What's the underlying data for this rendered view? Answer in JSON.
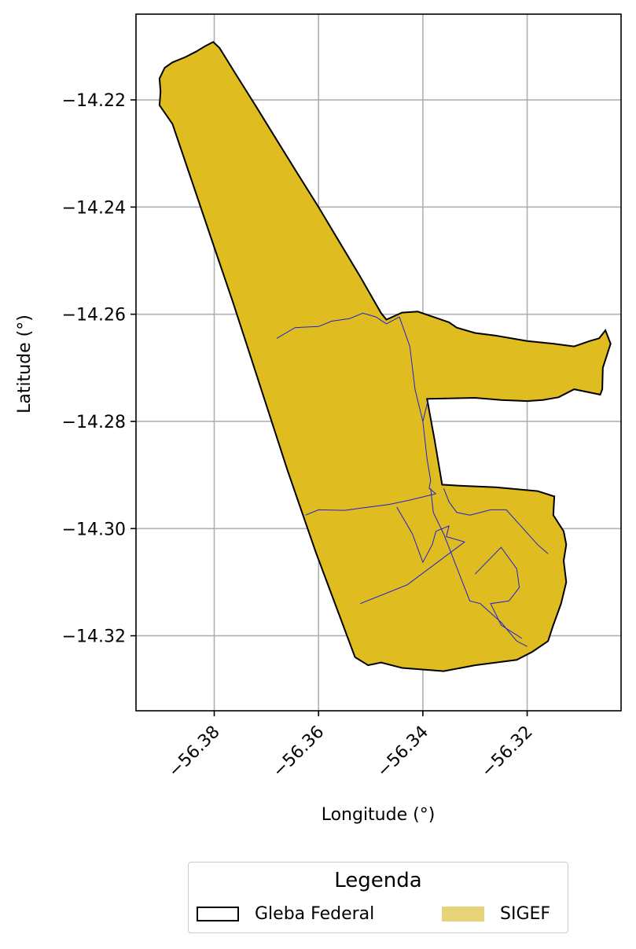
{
  "chart_data": {
    "type": "map",
    "xlabel": "Longitude (°)",
    "ylabel": "Latitude (°)",
    "xlim": [
      -56.395,
      -56.302
    ],
    "ylim": [
      -14.334,
      -14.204
    ],
    "xticks": [
      -56.38,
      -56.36,
      -56.34,
      -56.32
    ],
    "xtick_labels": [
      "−56.38",
      "−56.36",
      "−56.34",
      "−56.32"
    ],
    "yticks": [
      -14.22,
      -14.24,
      -14.26,
      -14.28,
      -14.3,
      -14.32
    ],
    "ytick_labels": [
      "−14.22",
      "−14.24",
      "−14.26",
      "−14.28",
      "−14.30",
      "−14.32"
    ],
    "grid": true,
    "legend": {
      "title": "Legenda",
      "placement": "bottom-center",
      "entries": [
        {
          "label": "Gleba Federal",
          "style": "outline",
          "color": "#000000"
        },
        {
          "label": "SIGEF",
          "style": "fill",
          "color": "#e8d27a"
        }
      ]
    },
    "layers": [
      {
        "name": "Gleba Federal",
        "fill": "#dfbc1f",
        "stroke": "#000000",
        "polygon": [
          [
            -56.3802,
            -14.2092
          ],
          [
            -56.379,
            -14.2103
          ],
          [
            -56.376,
            -14.215
          ],
          [
            -56.372,
            -14.2212
          ],
          [
            -56.368,
            -14.2275
          ],
          [
            -56.364,
            -14.2338
          ],
          [
            -56.36,
            -14.24
          ],
          [
            -56.356,
            -14.2465
          ],
          [
            -56.352,
            -14.253
          ],
          [
            -56.348,
            -14.2598
          ],
          [
            -56.347,
            -14.261
          ],
          [
            -56.344,
            -14.2597
          ],
          [
            -56.341,
            -14.2595
          ],
          [
            -56.338,
            -14.2605
          ],
          [
            -56.335,
            -14.2615
          ],
          [
            -56.3335,
            -14.2625
          ],
          [
            -56.33,
            -14.2635
          ],
          [
            -56.326,
            -14.264
          ],
          [
            -56.32,
            -14.265
          ],
          [
            -56.315,
            -14.2655
          ],
          [
            -56.311,
            -14.266
          ],
          [
            -56.308,
            -14.265
          ],
          [
            -56.3062,
            -14.2645
          ],
          [
            -56.305,
            -14.263
          ],
          [
            -56.304,
            -14.2655
          ],
          [
            -56.3045,
            -14.267
          ],
          [
            -56.3055,
            -14.27
          ],
          [
            -56.3056,
            -14.274
          ],
          [
            -56.306,
            -14.275
          ],
          [
            -56.3085,
            -14.2745
          ],
          [
            -56.311,
            -14.274
          ],
          [
            -56.314,
            -14.2755
          ],
          [
            -56.317,
            -14.276
          ],
          [
            -56.32,
            -14.2762
          ],
          [
            -56.325,
            -14.276
          ],
          [
            -56.33,
            -14.2756
          ],
          [
            -56.3392,
            -14.2758
          ],
          [
            -56.3378,
            -14.2832
          ],
          [
            -56.3363,
            -14.2918
          ],
          [
            -56.333,
            -14.292
          ],
          [
            -56.326,
            -14.2923
          ],
          [
            -56.318,
            -14.293
          ],
          [
            -56.3148,
            -14.294
          ],
          [
            -56.315,
            -14.2975
          ],
          [
            -56.313,
            -14.3005
          ],
          [
            -56.3125,
            -14.303
          ],
          [
            -56.313,
            -14.306
          ],
          [
            -56.3125,
            -14.31
          ],
          [
            -56.3135,
            -14.314
          ],
          [
            -56.315,
            -14.318
          ],
          [
            -56.316,
            -14.321
          ],
          [
            -56.319,
            -14.323
          ],
          [
            -56.322,
            -14.3245
          ],
          [
            -56.33,
            -14.3255
          ],
          [
            -56.336,
            -14.3266
          ],
          [
            -56.344,
            -14.326
          ],
          [
            -56.348,
            -14.325
          ],
          [
            -56.3505,
            -14.3255
          ],
          [
            -56.353,
            -14.324
          ],
          [
            -56.3605,
            -14.3045
          ],
          [
            -56.366,
            -14.289
          ],
          [
            -56.3695,
            -14.2785
          ],
          [
            -56.373,
            -14.268
          ],
          [
            -56.3765,
            -14.2575
          ],
          [
            -56.38,
            -14.2475
          ],
          [
            -56.384,
            -14.236
          ],
          [
            -56.388,
            -14.2245
          ],
          [
            -56.3905,
            -14.221
          ],
          [
            -56.3903,
            -14.2185
          ],
          [
            -56.3905,
            -14.216
          ],
          [
            -56.3895,
            -14.214
          ],
          [
            -56.388,
            -14.213
          ],
          [
            -56.3855,
            -14.212
          ],
          [
            -56.3835,
            -14.211
          ],
          [
            -56.3818,
            -14.21
          ]
        ]
      },
      {
        "name": "SIGEF",
        "stroke": "#1f1fd6",
        "lines": [
          [
            [
              -56.368,
              -14.2645
            ],
            [
              -56.3645,
              -14.2625
            ],
            [
              -56.36,
              -14.2623
            ],
            [
              -56.3575,
              -14.2613
            ],
            [
              -56.354,
              -14.2608
            ],
            [
              -56.3515,
              -14.2598
            ],
            [
              -56.349,
              -14.2605
            ],
            [
              -56.347,
              -14.2618
            ],
            [
              -56.3445,
              -14.2605
            ]
          ],
          [
            [
              -56.3445,
              -14.2605
            ],
            [
              -56.3425,
              -14.266
            ],
            [
              -56.3415,
              -14.274
            ],
            [
              -56.34,
              -14.28
            ],
            [
              -56.3392,
              -14.287
            ],
            [
              -56.3385,
              -14.291
            ],
            [
              -56.3388,
              -14.2925
            ],
            [
              -56.3375,
              -14.2935
            ]
          ],
          [
            [
              -56.3375,
              -14.2935
            ],
            [
              -56.343,
              -14.2948
            ],
            [
              -56.3465,
              -14.2955
            ],
            [
              -56.352,
              -14.2962
            ],
            [
              -56.355,
              -14.2966
            ],
            [
              -56.36,
              -14.2965
            ],
            [
              -56.3625,
              -14.2975
            ]
          ],
          [
            [
              -56.3385,
              -14.2925
            ],
            [
              -56.338,
              -14.297
            ],
            [
              -56.336,
              -14.301
            ],
            [
              -56.333,
              -14.3085
            ],
            [
              -56.331,
              -14.3135
            ],
            [
              -56.329,
              -14.314
            ],
            [
              -56.325,
              -14.3175
            ],
            [
              -56.322,
              -14.321
            ],
            [
              -56.32,
              -14.322
            ]
          ],
          [
            [
              -56.345,
              -14.296
            ],
            [
              -56.342,
              -14.301
            ],
            [
              -56.34,
              -14.3063
            ],
            [
              -56.3382,
              -14.303
            ],
            [
              -56.3375,
              -14.3005
            ],
            [
              -56.335,
              -14.2995
            ],
            [
              -56.3355,
              -14.3015
            ],
            [
              -56.332,
              -14.3025
            ],
            [
              -56.343,
              -14.3105
            ],
            [
              -56.352,
              -14.314
            ]
          ],
          [
            [
              -56.336,
              -14.2925
            ],
            [
              -56.335,
              -14.295
            ],
            [
              -56.3335,
              -14.297
            ],
            [
              -56.331,
              -14.2975
            ],
            [
              -56.327,
              -14.2965
            ],
            [
              -56.324,
              -14.2965
            ],
            [
              -56.318,
              -14.303
            ],
            [
              -56.316,
              -14.3047
            ]
          ],
          [
            [
              -56.33,
              -14.3085
            ],
            [
              -56.325,
              -14.3035
            ],
            [
              -56.322,
              -14.3075
            ],
            [
              -56.3215,
              -14.311
            ],
            [
              -56.3235,
              -14.3135
            ],
            [
              -56.327,
              -14.314
            ],
            [
              -56.325,
              -14.318
            ],
            [
              -56.321,
              -14.3205
            ]
          ],
          [
            [
              -56.34,
              -14.28
            ],
            [
              -56.339,
              -14.276
            ]
          ]
        ]
      }
    ]
  }
}
